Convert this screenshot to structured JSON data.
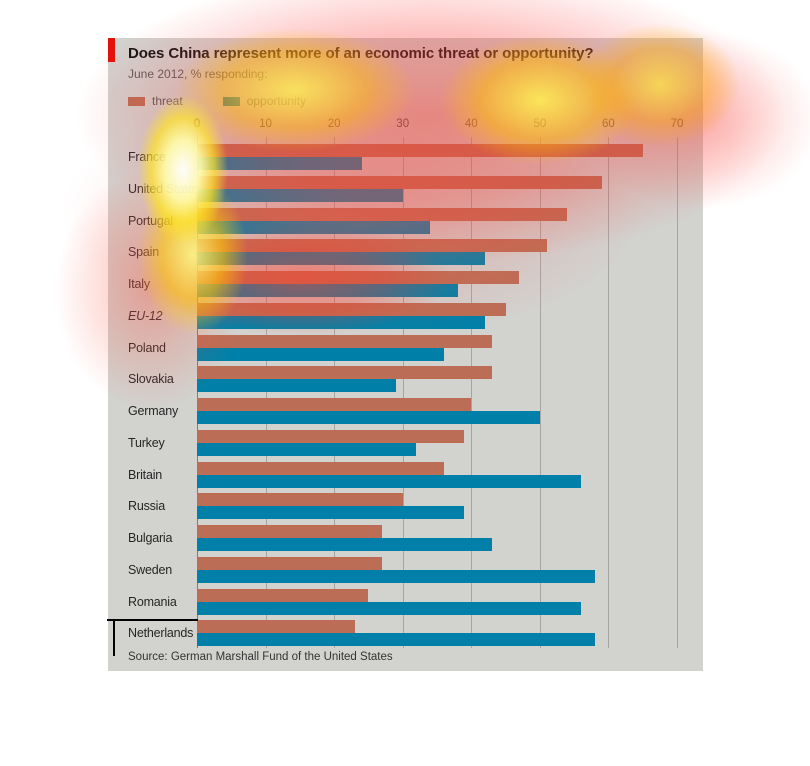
{
  "colors": {
    "accent_red": "#e3120b",
    "panel_bg": "#d2d2cf",
    "gridline": "#a7a5a3",
    "axis_line": "#7d7b79",
    "threat": "#bb6e55",
    "opportunity": "#0080a8"
  },
  "chart_data": {
    "type": "bar",
    "orientation": "horizontal",
    "title": "Does China represent more of an economic threat or opportunity?",
    "subtitle": "June 2012, % responding:",
    "categories": [
      "France",
      "United States",
      "Portugal",
      "Spain",
      "Italy",
      "EU-12",
      "Poland",
      "Slovakia",
      "Germany",
      "Turkey",
      "Britain",
      "Russia",
      "Bulgaria",
      "Sweden",
      "Romania",
      "Netherlands"
    ],
    "italic_categories": [
      "EU-12"
    ],
    "series": [
      {
        "name": "threat",
        "color": "#bb6e55",
        "values": [
          65,
          59,
          54,
          51,
          47,
          45,
          43,
          43,
          40,
          39,
          36,
          30,
          27,
          27,
          25,
          23
        ]
      },
      {
        "name": "opportunity",
        "color": "#0080a8",
        "values": [
          24,
          30,
          34,
          42,
          38,
          42,
          36,
          29,
          50,
          32,
          56,
          39,
          43,
          58,
          56,
          58
        ]
      }
    ],
    "xlim": [
      0,
      70
    ],
    "xticks": [
      0,
      10,
      20,
      30,
      40,
      50,
      60,
      70
    ],
    "grid": "vertical",
    "legend_position": "top-left",
    "source": "Source: German Marshall Fund of the United States"
  }
}
